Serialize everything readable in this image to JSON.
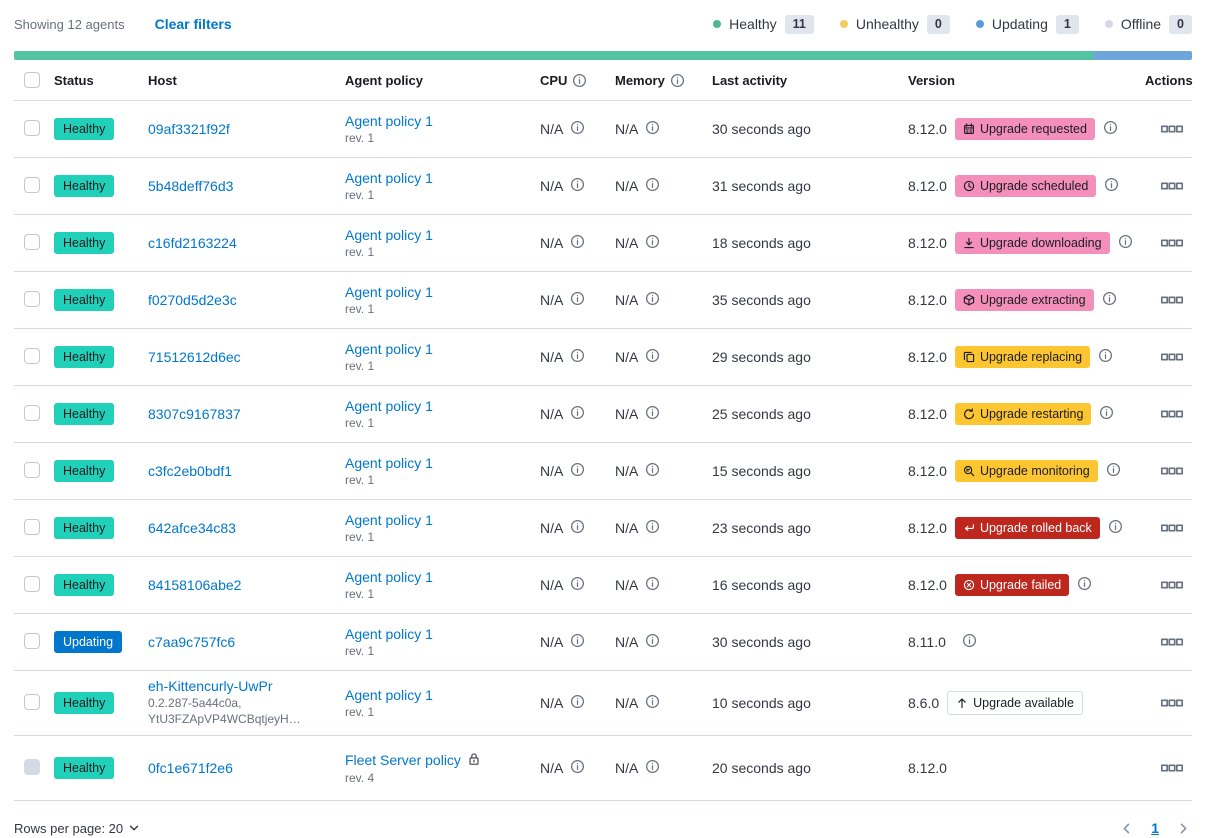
{
  "toolbar": {
    "showing_label": "Showing 12 agents",
    "clear_filters_label": "Clear filters",
    "legend": [
      {
        "label": "Healthy",
        "count": "11",
        "color": "#54B399",
        "dot_icon": "healthy-dot-icon"
      },
      {
        "label": "Unhealthy",
        "count": "0",
        "color": "#EFCE5A",
        "dot_icon": "unhealthy-dot-icon"
      },
      {
        "label": "Updating",
        "count": "1",
        "color": "#599DD8",
        "dot_icon": "updating-dot-icon"
      },
      {
        "label": "Offline",
        "count": "0",
        "color": "#D3DAE6",
        "dot_icon": "offline-dot-icon"
      }
    ]
  },
  "status_bar": {
    "segments": [
      {
        "name": "healthy",
        "color": "#54C3A2",
        "percent": 91.7
      },
      {
        "name": "updating",
        "color": "#6EA5DC",
        "percent": 8.3
      }
    ]
  },
  "table": {
    "columns": [
      {
        "label": "Status"
      },
      {
        "label": "Host"
      },
      {
        "label": "Agent policy"
      },
      {
        "label": "CPU",
        "info": true
      },
      {
        "label": "Memory",
        "info": true
      },
      {
        "label": "Last activity"
      },
      {
        "label": "Version"
      },
      {
        "label": "Actions"
      }
    ],
    "rows": [
      {
        "status": "Healthy",
        "status_type": "healthy",
        "host": "09af3321f92f",
        "policy": "Agent policy 1",
        "revision": "rev. 1",
        "cpu": "N/A",
        "memory": "N/A",
        "last_activity": "30 seconds ago",
        "version": "8.12.0",
        "upgrade_badge": {
          "label": "Upgrade requested",
          "style": "pink",
          "icon": "calendar-icon"
        },
        "badge_info": true
      },
      {
        "status": "Healthy",
        "status_type": "healthy",
        "host": "5b48deff76d3",
        "policy": "Agent policy 1",
        "revision": "rev. 1",
        "cpu": "N/A",
        "memory": "N/A",
        "last_activity": "31 seconds ago",
        "version": "8.12.0",
        "upgrade_badge": {
          "label": "Upgrade scheduled",
          "style": "pink",
          "icon": "clock-icon"
        },
        "badge_info": true
      },
      {
        "status": "Healthy",
        "status_type": "healthy",
        "host": "c16fd2163224",
        "policy": "Agent policy 1",
        "revision": "rev. 1",
        "cpu": "N/A",
        "memory": "N/A",
        "last_activity": "18 seconds ago",
        "version": "8.12.0",
        "upgrade_badge": {
          "label": "Upgrade downloading",
          "style": "pink",
          "icon": "download-icon"
        },
        "badge_info": true
      },
      {
        "status": "Healthy",
        "status_type": "healthy",
        "host": "f0270d5d2e3c",
        "policy": "Agent policy 1",
        "revision": "rev. 1",
        "cpu": "N/A",
        "memory": "N/A",
        "last_activity": "35 seconds ago",
        "version": "8.12.0",
        "upgrade_badge": {
          "label": "Upgrade extracting",
          "style": "pink",
          "icon": "package-icon"
        },
        "badge_info": true
      },
      {
        "status": "Healthy",
        "status_type": "healthy",
        "host": "71512612d6ec",
        "policy": "Agent policy 1",
        "revision": "rev. 1",
        "cpu": "N/A",
        "memory": "N/A",
        "last_activity": "29 seconds ago",
        "version": "8.12.0",
        "upgrade_badge": {
          "label": "Upgrade replacing",
          "style": "warning",
          "icon": "copy-icon"
        },
        "badge_info": true
      },
      {
        "status": "Healthy",
        "status_type": "healthy",
        "host": "8307c9167837",
        "policy": "Agent policy 1",
        "revision": "rev. 1",
        "cpu": "N/A",
        "memory": "N/A",
        "last_activity": "25 seconds ago",
        "version": "8.12.0",
        "upgrade_badge": {
          "label": "Upgrade restarting",
          "style": "warning",
          "icon": "refresh-icon"
        },
        "badge_info": true
      },
      {
        "status": "Healthy",
        "status_type": "healthy",
        "host": "c3fc2eb0bdf1",
        "policy": "Agent policy 1",
        "revision": "rev. 1",
        "cpu": "N/A",
        "memory": "N/A",
        "last_activity": "15 seconds ago",
        "version": "8.12.0",
        "upgrade_badge": {
          "label": "Upgrade monitoring",
          "style": "warning",
          "icon": "inspect-icon"
        },
        "badge_info": true
      },
      {
        "status": "Healthy",
        "status_type": "healthy",
        "host": "642afce34c83",
        "policy": "Agent policy 1",
        "revision": "rev. 1",
        "cpu": "N/A",
        "memory": "N/A",
        "last_activity": "23 seconds ago",
        "version": "8.12.0",
        "upgrade_badge": {
          "label": "Upgrade rolled back",
          "style": "danger",
          "icon": "return-icon"
        },
        "badge_info": true
      },
      {
        "status": "Healthy",
        "status_type": "healthy",
        "host": "84158106abe2",
        "policy": "Agent policy 1",
        "revision": "rev. 1",
        "cpu": "N/A",
        "memory": "N/A",
        "last_activity": "16 seconds ago",
        "version": "8.12.0",
        "upgrade_badge": {
          "label": "Upgrade failed",
          "style": "danger",
          "icon": "error-icon"
        },
        "badge_info": true
      },
      {
        "status": "Updating",
        "status_type": "updating",
        "host": "c7aa9c757fc6",
        "policy": "Agent policy 1",
        "revision": "rev. 1",
        "cpu": "N/A",
        "memory": "N/A",
        "last_activity": "30 seconds ago",
        "version": "8.11.0",
        "version_info": true
      },
      {
        "status": "Healthy",
        "status_type": "healthy",
        "host": "eh-Kittencurly-UwPr",
        "host_sub": [
          "0.2.287-5a44c0a,",
          "YtU3FZApVP4WCBqtjeyH…"
        ],
        "policy": "Agent policy 1",
        "revision": "rev. 1",
        "cpu": "N/A",
        "memory": "N/A",
        "last_activity": "10 seconds ago",
        "version": "8.6.0",
        "upgrade_badge": {
          "label": "Upgrade available",
          "style": "hollow",
          "icon": "arrow-up-icon"
        },
        "tall": true
      },
      {
        "status": "Healthy",
        "status_type": "healthy",
        "host": "0fc1e671f2e6",
        "policy": "Fleet Server policy",
        "policy_locked": true,
        "revision": "rev. 4",
        "cpu": "N/A",
        "memory": "N/A",
        "last_activity": "20 seconds ago",
        "version": "8.12.0",
        "checkbox_disabled": true,
        "tall": true
      }
    ]
  },
  "footer": {
    "rows_per_page_label": "Rows per page: 20",
    "page": "1"
  },
  "colors": {
    "link": "#0077CC",
    "text": "#343741",
    "text_subdued": "#69707D",
    "border": "#D3DAE6",
    "healthy_badge": "#21D0B8",
    "updating_badge": "#0077CC",
    "pink_badge": "#F48FBB",
    "warning_badge": "#FDC630",
    "danger_badge": "#BD271E",
    "count_badge_bg": "#E0E5EE"
  }
}
